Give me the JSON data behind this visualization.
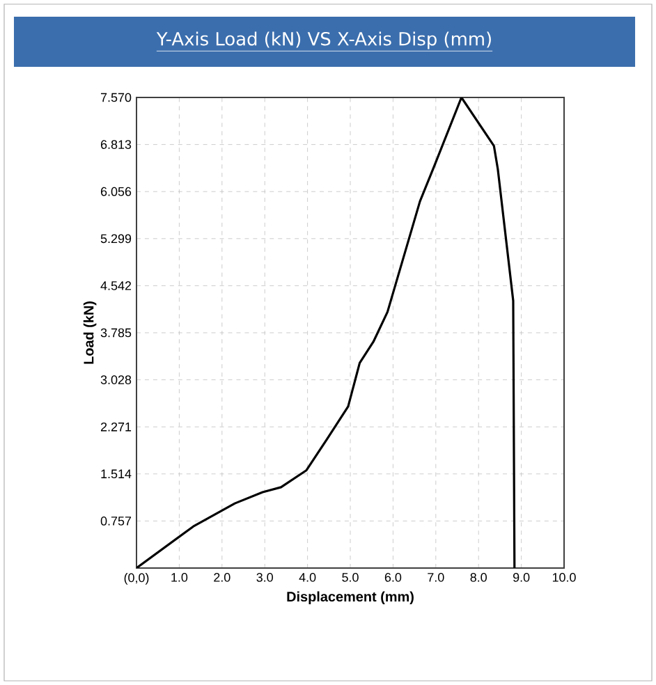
{
  "chart_data": {
    "type": "line",
    "title": "Y-Axis Load (kN) VS X-Axis Disp (mm)",
    "xlabel": "Displacement (mm)",
    "ylabel": "Load (kN)",
    "series": [
      {
        "color": "#000000",
        "x": [
          0,
          1.33,
          2.3,
          2.95,
          3.38,
          3.97,
          4.46,
          4.95,
          5.22,
          5.54,
          5.87,
          6.63,
          6.96,
          7.6,
          8.36,
          8.45,
          8.81,
          8.84
        ],
        "values": [
          0,
          0.67,
          1.04,
          1.22,
          1.3,
          1.57,
          2.08,
          2.6,
          3.3,
          3.64,
          4.12,
          5.9,
          6.46,
          7.57,
          6.79,
          6.42,
          4.3,
          0
        ]
      }
    ],
    "xlim": [
      0,
      10
    ],
    "ylim": [
      0,
      7.57
    ],
    "xticks": [
      {
        "value": 0,
        "label": "(0,0)"
      },
      {
        "value": 1,
        "label": "1.0"
      },
      {
        "value": 2,
        "label": "2.0"
      },
      {
        "value": 3,
        "label": "3.0"
      },
      {
        "value": 4,
        "label": "4.0"
      },
      {
        "value": 5,
        "label": "5.0"
      },
      {
        "value": 6,
        "label": "6.0"
      },
      {
        "value": 7,
        "label": "7.0"
      },
      {
        "value": 8,
        "label": "8.0"
      },
      {
        "value": 9,
        "label": "9.0"
      },
      {
        "value": 10,
        "label": "10.0"
      }
    ],
    "yticks": [
      {
        "value": 0,
        "label": null
      },
      {
        "value": 0.757,
        "label": "0.757"
      },
      {
        "value": 1.514,
        "label": "1.514"
      },
      {
        "value": 2.271,
        "label": "2.271"
      },
      {
        "value": 3.028,
        "label": "3.028"
      },
      {
        "value": 3.785,
        "label": "3.785"
      },
      {
        "value": 4.542,
        "label": "4.542"
      },
      {
        "value": 5.299,
        "label": "5.299"
      },
      {
        "value": 6.056,
        "label": "6.056"
      },
      {
        "value": 6.813,
        "label": "6.813"
      },
      {
        "value": 7.57,
        "label": "7.570"
      }
    ],
    "grid": true
  }
}
